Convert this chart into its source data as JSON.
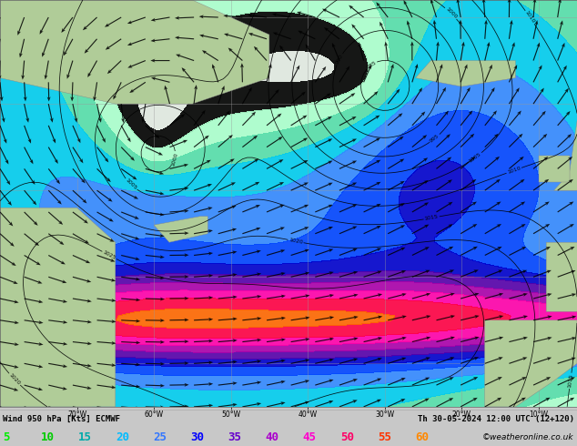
{
  "title_left": "Wind 950 hPa [Kts] ECMWF",
  "title_right": "Th 30-05-2024 12:00 UTC (12+120)",
  "copyright": "©weatheronline.co.uk",
  "bg_color": "#c8c8c8",
  "ocean_color": "#e0e8e0",
  "land_color": "#b8d4b0",
  "bottom_bar_color": "#ffffff",
  "legend_values": [
    5,
    10,
    15,
    20,
    25,
    30,
    35,
    40,
    45,
    50,
    55,
    60
  ],
  "legend_colors": [
    "#00ee00",
    "#00cc00",
    "#00aaaa",
    "#00bbff",
    "#3377ff",
    "#0000ff",
    "#6600cc",
    "#aa00cc",
    "#ff00cc",
    "#ff0066",
    "#ff3300",
    "#ff8800"
  ],
  "fig_width": 6.34,
  "fig_height": 4.9,
  "dpi": 100,
  "wind_fill_colors": [
    "none",
    "#aaffcc",
    "#55ddaa",
    "#00ccee",
    "#3388ff",
    "#0044ff",
    "#0000cc",
    "#5500aa",
    "#aa00aa",
    "#ff00aa",
    "#ff0044",
    "#ff6600"
  ],
  "wind_fill_levels": [
    5,
    10,
    15,
    20,
    25,
    30,
    35,
    40,
    45,
    50,
    55,
    60,
    80
  ],
  "grid_lons": [
    -70,
    -60,
    -50,
    -40,
    -30,
    -20,
    -10
  ],
  "grid_lats": [
    30,
    40,
    50,
    60,
    70
  ],
  "lon_min": -80,
  "lon_max": -5,
  "lat_min": 25,
  "lat_max": 72
}
